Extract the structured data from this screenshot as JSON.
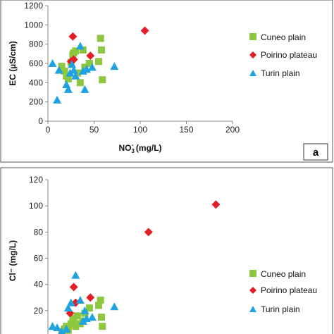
{
  "chart_data": [
    {
      "type": "scatter",
      "panel_label": "a",
      "xlabel_main": "NO",
      "xlabel_sub": "3",
      "xlabel_sup": "-",
      "xlabel_unit": " (mg/L)",
      "ylabel": "EC (µS/cm)",
      "xlim": [
        0,
        200
      ],
      "ylim": [
        0,
        1200
      ],
      "xticks": [
        "0",
        "50",
        "100",
        "150",
        "200"
      ],
      "yticks": [
        "0",
        "200",
        "400",
        "600",
        "800",
        "1000",
        "1200"
      ],
      "grid": false,
      "legend": "right",
      "series": [
        {
          "name": "Cuneo plain",
          "marker": "square",
          "color": "#8dc63f",
          "points": [
            [
              15,
              570
            ],
            [
              18,
              520
            ],
            [
              20,
              470
            ],
            [
              22,
              440
            ],
            [
              25,
              610
            ],
            [
              27,
              690
            ],
            [
              28,
              710
            ],
            [
              30,
              730
            ],
            [
              32,
              500
            ],
            [
              35,
              400
            ],
            [
              38,
              740
            ],
            [
              40,
              560
            ],
            [
              45,
              600
            ],
            [
              55,
              620
            ],
            [
              57,
              860
            ],
            [
              58,
              740
            ],
            [
              59,
              430
            ]
          ]
        },
        {
          "name": "Poirino plateau",
          "marker": "diamond",
          "color": "#e41e26",
          "points": [
            [
              25,
              620
            ],
            [
              27,
              880
            ],
            [
              28,
              640
            ],
            [
              46,
              680
            ],
            [
              105,
              940
            ]
          ]
        },
        {
          "name": "Turin plain",
          "marker": "triangle",
          "color": "#1fa3e0",
          "points": [
            [
              5,
              600
            ],
            [
              10,
              220
            ],
            [
              12,
              530
            ],
            [
              20,
              380
            ],
            [
              22,
              330
            ],
            [
              24,
              500
            ],
            [
              26,
              590
            ],
            [
              28,
              530
            ],
            [
              30,
              470
            ],
            [
              35,
              780
            ],
            [
              38,
              520
            ],
            [
              40,
              330
            ],
            [
              42,
              540
            ],
            [
              48,
              560
            ],
            [
              72,
              570
            ]
          ]
        }
      ]
    },
    {
      "type": "scatter",
      "panel_label": "",
      "xlabel_main": "",
      "xlabel_sub": "",
      "xlabel_sup": "",
      "xlabel_unit": "",
      "ylabel": "Cl⁻ (mg/L)",
      "xlim": [
        0,
        200
      ],
      "ylim": [
        0,
        120
      ],
      "xticks": [],
      "yticks": [
        "20",
        "40",
        "60",
        "80",
        "100",
        "120"
      ],
      "grid": false,
      "legend": "right",
      "series": [
        {
          "name": "Cuneo plain",
          "marker": "square",
          "color": "#8dc63f",
          "points": [
            [
              15,
              4
            ],
            [
              18,
              6
            ],
            [
              20,
              8
            ],
            [
              22,
              5
            ],
            [
              25,
              10
            ],
            [
              27,
              12
            ],
            [
              28,
              14
            ],
            [
              30,
              8
            ],
            [
              32,
              16
            ],
            [
              35,
              10
            ],
            [
              38,
              12
            ],
            [
              40,
              18
            ],
            [
              45,
              22
            ],
            [
              55,
              24
            ],
            [
              57,
              28
            ],
            [
              58,
              15
            ],
            [
              59,
              8
            ]
          ]
        },
        {
          "name": "Poirino plateau",
          "marker": "diamond",
          "color": "#e41e26",
          "points": [
            [
              24,
              18
            ],
            [
              28,
              38
            ],
            [
              30,
              26
            ],
            [
              46,
              30
            ],
            [
              109,
              80
            ],
            [
              182,
              101
            ]
          ]
        },
        {
          "name": "Turin plain",
          "marker": "triangle",
          "color": "#1fa3e0",
          "points": [
            [
              5,
              8
            ],
            [
              10,
              7
            ],
            [
              15,
              4
            ],
            [
              20,
              6
            ],
            [
              22,
              22
            ],
            [
              25,
              26
            ],
            [
              30,
              47
            ],
            [
              35,
              28
            ],
            [
              38,
              12
            ],
            [
              40,
              20
            ],
            [
              42,
              14
            ],
            [
              48,
              15
            ],
            [
              72,
              23
            ]
          ]
        }
      ]
    }
  ]
}
